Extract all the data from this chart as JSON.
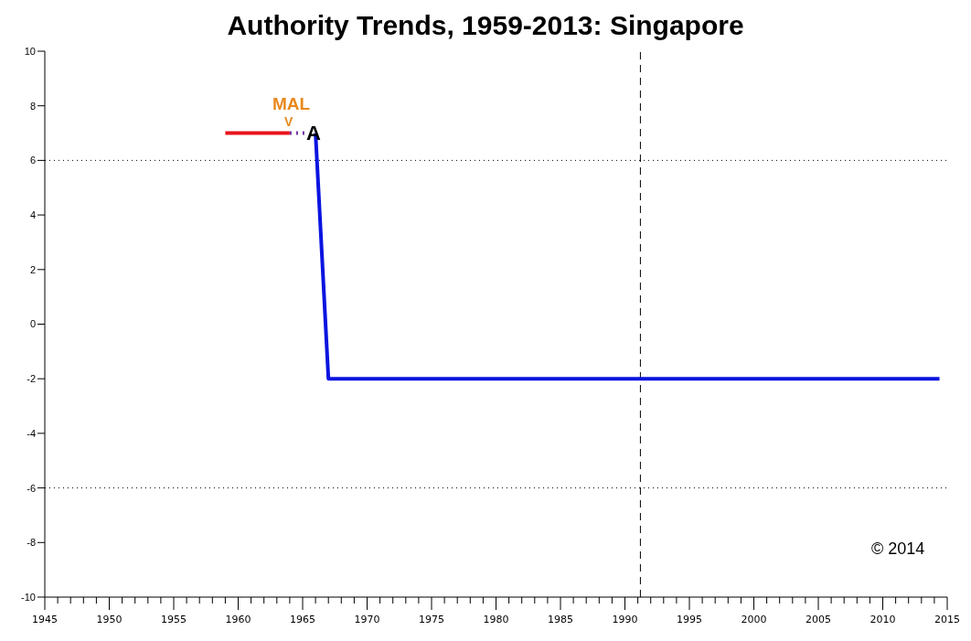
{
  "chart_data": {
    "type": "line",
    "title": "Authority Trends, 1959-2013: Singapore",
    "series": [
      {
        "color": "#e8141c",
        "x": [
          1959,
          1964
        ],
        "values": [
          7,
          7
        ]
      },
      {
        "color": "#7030a0",
        "x": [
          1964,
          1965.4
        ],
        "values": [
          7,
          7
        ],
        "line_style": "dotted"
      },
      {
        "color": "#0a14e0",
        "x": [
          1966,
          1967,
          2014.4
        ],
        "values": [
          7,
          -2,
          -2
        ]
      }
    ],
    "xlim": [
      1945,
      2015
    ],
    "ylim": [
      -10,
      10
    ],
    "yticks": [
      -10,
      -8,
      -6,
      -4,
      -2,
      0,
      2,
      4,
      6,
      8,
      10
    ],
    "xticks": [
      1945,
      {
        "value": 1946,
        "label": null
      },
      {
        "value": 1947,
        "label": null
      },
      {
        "value": 1948,
        "label": null
      },
      {
        "value": 1949,
        "label": null
      },
      1950,
      {
        "value": 1951,
        "label": null
      },
      {
        "value": 1952,
        "label": null
      },
      {
        "value": 1953,
        "label": null
      },
      {
        "value": 1954,
        "label": null
      },
      1955,
      {
        "value": 1956,
        "label": null
      },
      {
        "value": 1957,
        "label": null
      },
      {
        "value": 1958,
        "label": null
      },
      {
        "value": 1959,
        "label": null
      },
      1960,
      {
        "value": 1961,
        "label": null
      },
      {
        "value": 1962,
        "label": null
      },
      {
        "value": 1963,
        "label": null
      },
      {
        "value": 1964,
        "label": null
      },
      1965,
      {
        "value": 1966,
        "label": null
      },
      {
        "value": 1967,
        "label": null
      },
      {
        "value": 1968,
        "label": null
      },
      {
        "value": 1969,
        "label": null
      },
      1970,
      {
        "value": 1971,
        "label": null
      },
      {
        "value": 1972,
        "label": null
      },
      {
        "value": 1973,
        "label": null
      },
      {
        "value": 1974,
        "label": null
      },
      1975,
      {
        "value": 1976,
        "label": null
      },
      {
        "value": 1977,
        "label": null
      },
      {
        "value": 1978,
        "label": null
      },
      {
        "value": 1979,
        "label": null
      },
      1980,
      {
        "value": 1981,
        "label": null
      },
      {
        "value": 1982,
        "label": null
      },
      {
        "value": 1983,
        "label": null
      },
      {
        "value": 1984,
        "label": null
      },
      1985,
      {
        "value": 1986,
        "label": null
      },
      {
        "value": 1987,
        "label": null
      },
      {
        "value": 1988,
        "label": null
      },
      {
        "value": 1989,
        "label": null
      },
      1990,
      {
        "value": 1991,
        "label": null
      },
      {
        "value": 1992,
        "label": null
      },
      {
        "value": 1993,
        "label": null
      },
      {
        "value": 1994,
        "label": null
      },
      1995,
      {
        "value": 1996,
        "label": null
      },
      {
        "value": 1997,
        "label": null
      },
      {
        "value": 1998,
        "label": null
      },
      {
        "value": 1999,
        "label": null
      },
      2000,
      {
        "value": 2001,
        "label": null
      },
      {
        "value": 2002,
        "label": null
      },
      {
        "value": 2003,
        "label": null
      },
      {
        "value": 2004,
        "label": null
      },
      2005,
      {
        "value": 2006,
        "label": null
      },
      {
        "value": 2007,
        "label": null
      },
      {
        "value": 2008,
        "label": null
      },
      {
        "value": 2009,
        "label": null
      },
      2010,
      {
        "value": 2011,
        "label": null
      },
      {
        "value": 2012,
        "label": null
      },
      {
        "value": 2013,
        "label": null
      },
      {
        "value": 2014,
        "label": null
      },
      2015
    ],
    "ref_lines": [
      {
        "axis": "y",
        "value": 6,
        "line_style": "dotted"
      },
      {
        "axis": "y",
        "value": -6,
        "line_style": "dotted"
      },
      {
        "axis": "x",
        "value": 1991.2,
        "line_style": "dashed"
      }
    ],
    "annotations": [
      "MAL",
      "V",
      "A",
      "© 2014"
    ],
    "marker": "none"
  }
}
